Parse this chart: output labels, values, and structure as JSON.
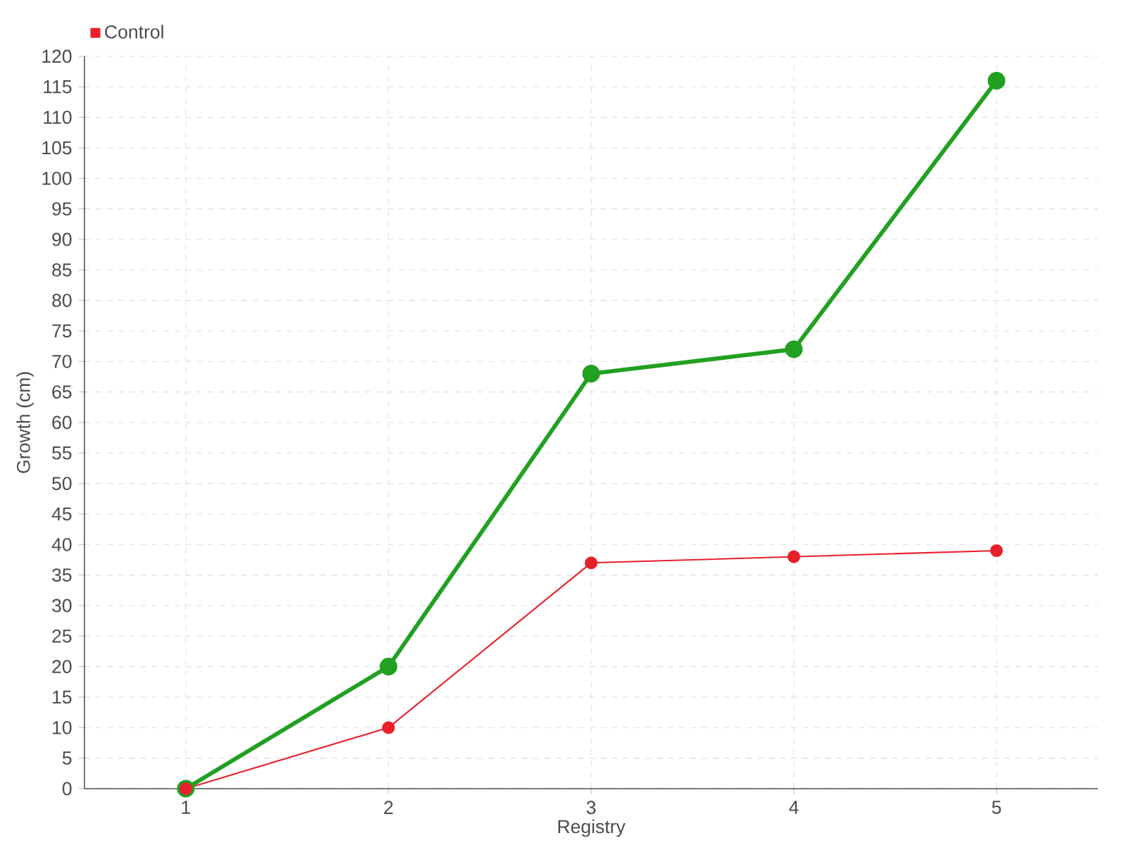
{
  "chart_data": {
    "type": "line",
    "xlabel": "Registry",
    "ylabel": "Growth (cm)",
    "categories": [
      "1",
      "2",
      "3",
      "4",
      "5"
    ],
    "series": [
      {
        "color": "#22a022",
        "values": [
          0,
          20,
          68,
          72,
          116
        ]
      },
      {
        "name": "Control",
        "color": "#e8202c",
        "values": [
          0,
          10,
          37,
          38,
          39
        ]
      }
    ],
    "ylim": [
      0,
      120
    ],
    "yticks": [
      0,
      5,
      10,
      15,
      20,
      25,
      30,
      35,
      40,
      45,
      50,
      55,
      60,
      65,
      70,
      75,
      80,
      85,
      90,
      95,
      100,
      105,
      110,
      115,
      120
    ],
    "grid": true,
    "legend": "top left",
    "marker": "circle",
    "line_style": "solid"
  }
}
